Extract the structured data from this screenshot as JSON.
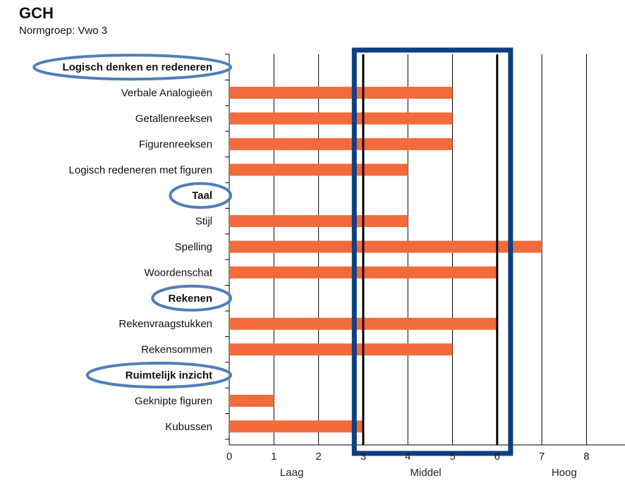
{
  "header": {
    "title": "GCH",
    "subtitle": "Normgroep: Vwo 3"
  },
  "chart_data": {
    "type": "bar",
    "orientation": "horizontal",
    "rows": [
      {
        "label": "Logisch denken en redeneren",
        "heading": true,
        "circled": true
      },
      {
        "label": "Verbale Analogieën",
        "value": 5
      },
      {
        "label": "Getallenreeksen",
        "value": 5
      },
      {
        "label": "Figurenreeksen",
        "value": 5
      },
      {
        "label": "Logisch redeneren met figuren",
        "value": 4
      },
      {
        "label": "Taal",
        "heading": true,
        "circled": true
      },
      {
        "label": "Stijl",
        "value": 4
      },
      {
        "label": "Spelling",
        "value": 7
      },
      {
        "label": "Woordenschat",
        "value": 6
      },
      {
        "label": "Rekenen",
        "heading": true,
        "circled": true
      },
      {
        "label": "Rekenvraagstukken",
        "value": 6
      },
      {
        "label": "Rekensommen",
        "value": 5
      },
      {
        "label": "Ruimtelijk inzicht",
        "heading": true,
        "circled": true
      },
      {
        "label": "Geknipte figuren",
        "value": 1
      },
      {
        "label": "Kubussen",
        "value": 3
      }
    ],
    "xlim": [
      0,
      8.9
    ],
    "xticks": [
      "0",
      "1",
      "2",
      "3",
      "4",
      "5",
      "6",
      "7",
      "8"
    ],
    "bands": [
      {
        "label": "Laag",
        "center": 1.4
      },
      {
        "label": "Middel",
        "center": 4.4
      },
      {
        "label": "Hoog",
        "center": 7.5
      }
    ],
    "reference_lines": [
      3,
      6
    ],
    "highlight_box": [
      2.8,
      6.3
    ],
    "grid": true,
    "colors": {
      "bar": "#f26b3a",
      "circle": "#4f7fba",
      "box": "#0d3f82",
      "grid": "#000000"
    }
  }
}
